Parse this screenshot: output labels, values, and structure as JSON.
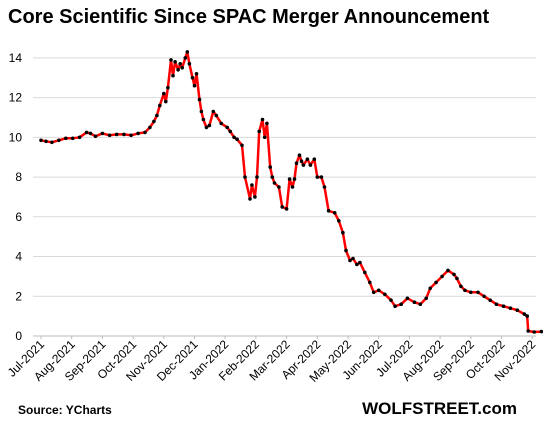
{
  "chart_data": {
    "type": "line",
    "title": "Core Scientific Since SPAC Merger Announcement",
    "source": "Source: YCharts",
    "brand": "WOLFSTREET.com",
    "xlabel": "",
    "ylabel": "",
    "ylim": [
      0,
      15
    ],
    "y_ticks": [
      "0",
      "2",
      "4",
      "6",
      "8",
      "10",
      "12",
      "14"
    ],
    "x_ticks": [
      "Jul-2021",
      "Aug-2021",
      "Sep-2021",
      "Oct-2021",
      "Nov-2021",
      "Dec-2021",
      "Jan-2022",
      "Feb-2022",
      "Mar-2022",
      "Apr-2022",
      "May-2022",
      "Jun-2022",
      "Jul-2022",
      "Aug-2022",
      "Sep-2022",
      "Oct-2022",
      "Nov-2022"
    ],
    "grid": true,
    "legend": "none",
    "line_color": "#ff0000",
    "marker_color": "#000000",
    "series": [
      {
        "x": [
          "2021-07-01",
          "2021-07-06",
          "2021-07-12",
          "2021-07-19",
          "2021-07-26",
          "2021-08-02",
          "2021-08-09",
          "2021-08-16",
          "2021-08-20",
          "2021-08-25",
          "2021-09-01",
          "2021-09-08",
          "2021-09-15",
          "2021-09-22",
          "2021-09-29",
          "2021-10-06",
          "2021-10-13",
          "2021-10-18",
          "2021-10-22",
          "2021-10-25",
          "2021-10-28",
          "2021-11-01",
          "2021-11-03",
          "2021-11-05",
          "2021-11-08",
          "2021-11-10",
          "2021-11-12",
          "2021-11-15",
          "2021-11-17",
          "2021-11-19",
          "2021-11-22",
          "2021-11-24",
          "2021-11-26",
          "2021-11-29",
          "2021-12-01",
          "2021-12-03",
          "2021-12-06",
          "2021-12-08",
          "2021-12-10",
          "2021-12-13",
          "2021-12-16",
          "2021-12-20",
          "2021-12-23",
          "2021-12-28",
          "2022-01-03",
          "2022-01-06",
          "2022-01-10",
          "2022-01-13",
          "2022-01-18",
          "2022-01-21",
          "2022-01-26",
          "2022-01-28",
          "2022-01-31",
          "2022-02-02",
          "2022-02-04",
          "2022-02-07",
          "2022-02-09",
          "2022-02-11",
          "2022-02-14",
          "2022-02-16",
          "2022-02-18",
          "2022-02-22",
          "2022-02-25",
          "2022-03-01",
          "2022-03-04",
          "2022-03-07",
          "2022-03-09",
          "2022-03-11",
          "2022-03-14",
          "2022-03-16",
          "2022-03-18",
          "2022-03-22",
          "2022-03-25",
          "2022-03-29",
          "2022-04-01",
          "2022-04-05",
          "2022-04-08",
          "2022-04-12",
          "2022-04-18",
          "2022-04-22",
          "2022-04-26",
          "2022-04-29",
          "2022-05-03",
          "2022-05-06",
          "2022-05-10",
          "2022-05-13",
          "2022-05-18",
          "2022-05-23",
          "2022-05-27",
          "2022-06-01",
          "2022-06-07",
          "2022-06-13",
          "2022-06-17",
          "2022-06-23",
          "2022-06-29",
          "2022-07-06",
          "2022-07-12",
          "2022-07-18",
          "2022-07-22",
          "2022-07-28",
          "2022-08-03",
          "2022-08-09",
          "2022-08-15",
          "2022-08-18",
          "2022-08-22",
          "2022-08-26",
          "2022-09-01",
          "2022-09-08",
          "2022-09-14",
          "2022-09-20",
          "2022-09-26",
          "2022-10-03",
          "2022-10-10",
          "2022-10-17",
          "2022-10-24",
          "2022-10-27",
          "2022-10-28",
          "2022-11-03",
          "2022-11-10",
          "2022-11-17",
          "2022-11-25"
        ],
        "y": [
          9.85,
          9.8,
          9.75,
          9.85,
          9.95,
          9.95,
          10.0,
          10.25,
          10.2,
          10.05,
          10.2,
          10.1,
          10.15,
          10.15,
          10.1,
          10.2,
          10.25,
          10.5,
          10.8,
          11.1,
          11.6,
          12.2,
          11.8,
          12.5,
          13.9,
          13.1,
          13.8,
          13.4,
          13.7,
          13.5,
          14.0,
          14.3,
          13.7,
          13.0,
          12.6,
          13.2,
          11.9,
          11.3,
          10.9,
          10.5,
          10.6,
          11.3,
          11.1,
          10.7,
          10.5,
          10.3,
          10.0,
          9.9,
          9.6,
          8.0,
          6.9,
          7.6,
          7.0,
          8.0,
          10.3,
          10.9,
          10.0,
          10.7,
          8.5,
          8.0,
          7.7,
          7.5,
          6.5,
          6.4,
          7.9,
          7.5,
          7.9,
          8.7,
          9.1,
          8.8,
          8.6,
          8.9,
          8.6,
          8.9,
          8.0,
          8.0,
          7.5,
          6.3,
          6.2,
          5.8,
          5.2,
          4.3,
          3.8,
          3.9,
          3.6,
          3.7,
          3.2,
          2.7,
          2.2,
          2.3,
          2.1,
          1.8,
          1.5,
          1.6,
          1.9,
          1.7,
          1.6,
          1.9,
          2.4,
          2.7,
          3.0,
          3.3,
          3.1,
          2.9,
          2.5,
          2.3,
          2.2,
          2.2,
          2.0,
          1.8,
          1.6,
          1.5,
          1.4,
          1.3,
          1.1,
          1.0,
          0.25,
          0.2,
          0.22,
          0.2,
          0.15
        ]
      }
    ]
  }
}
